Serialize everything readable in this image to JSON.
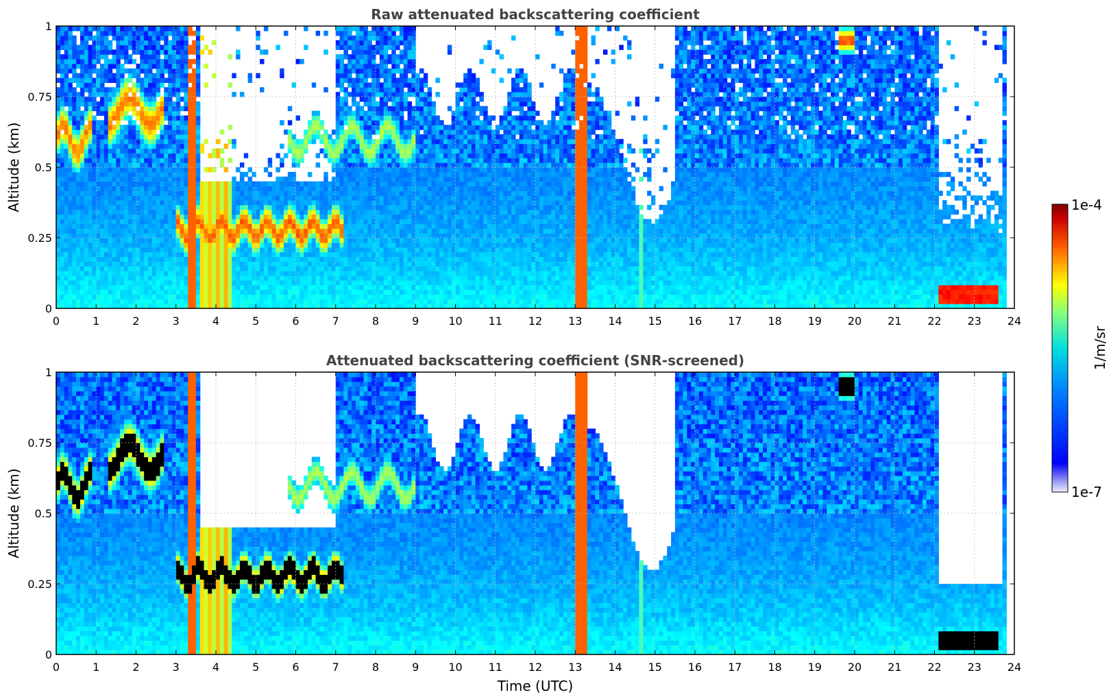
{
  "chart_data": [
    {
      "type": "heatmap",
      "title": "Raw attenuated backscattering coefficient",
      "xlabel": "",
      "ylabel": "Altitude (km)",
      "xlim": [
        0,
        24
      ],
      "ylim": [
        0,
        1
      ],
      "xticks": [
        "0",
        "1",
        "2",
        "3",
        "4",
        "5",
        "6",
        "7",
        "8",
        "9",
        "10",
        "11",
        "12",
        "13",
        "14",
        "15",
        "16",
        "17",
        "18",
        "19",
        "20",
        "21",
        "22",
        "23",
        "24"
      ],
      "yticks": [
        "0",
        "0.25",
        "0.5",
        "0.75",
        "1"
      ],
      "grid": true,
      "features": [
        {
          "time": [
            0,
            0.9
          ],
          "altitude": [
            0.45,
            0.75
          ],
          "level": "high"
        },
        {
          "time": [
            1.3,
            2.6
          ],
          "altitude": [
            0.55,
            0.85
          ],
          "level": "high"
        },
        {
          "time": [
            3.0,
            7.2
          ],
          "altitude": [
            0.15,
            0.4
          ],
          "level": "high"
        },
        {
          "time": [
            3.3,
            4.4
          ],
          "altitude": [
            0,
            1
          ],
          "level": "saturated-column"
        },
        {
          "time": [
            12.9,
            13.3
          ],
          "altitude": [
            0,
            1
          ],
          "level": "saturated-column"
        },
        {
          "time": [
            19.6,
            20.0
          ],
          "altitude": [
            0.9,
            1.0
          ],
          "level": "high"
        },
        {
          "time": [
            22.1,
            23.5
          ],
          "altitude": [
            0.02,
            0.08
          ],
          "level": "very-high"
        }
      ]
    },
    {
      "type": "heatmap",
      "title": "Attenuated backscattering coefficient (SNR-screened)",
      "xlabel": "Time (UTC)",
      "ylabel": "Altitude (km)",
      "xlim": [
        0,
        24
      ],
      "ylim": [
        0,
        1
      ],
      "xticks": [
        "0",
        "1",
        "2",
        "3",
        "4",
        "5",
        "6",
        "7",
        "8",
        "9",
        "10",
        "11",
        "12",
        "13",
        "14",
        "15",
        "16",
        "17",
        "18",
        "19",
        "20",
        "21",
        "22",
        "23",
        "24"
      ],
      "yticks": [
        "0",
        "0.25",
        "0.5",
        "0.75",
        "1"
      ],
      "grid": true,
      "features": [
        {
          "time": [
            0,
            0.9
          ],
          "altitude": [
            0.45,
            0.75
          ],
          "level": "above-scale"
        },
        {
          "time": [
            1.3,
            2.6
          ],
          "altitude": [
            0.55,
            0.85
          ],
          "level": "above-scale"
        },
        {
          "time": [
            3.0,
            7.2
          ],
          "altitude": [
            0.15,
            0.4
          ],
          "level": "above-scale"
        },
        {
          "time": [
            22.1,
            23.5
          ],
          "altitude": [
            0.02,
            0.08
          ],
          "level": "above-scale"
        }
      ]
    }
  ],
  "colorbar": {
    "max_label": "1e-4",
    "min_label": "1e-7",
    "unit_label": "1/m/sr",
    "colormap": "jet"
  },
  "colors": {
    "title": "#444444",
    "grid": "#bbbbbb",
    "missing": "#ffffff",
    "above_scale": "#000000"
  }
}
